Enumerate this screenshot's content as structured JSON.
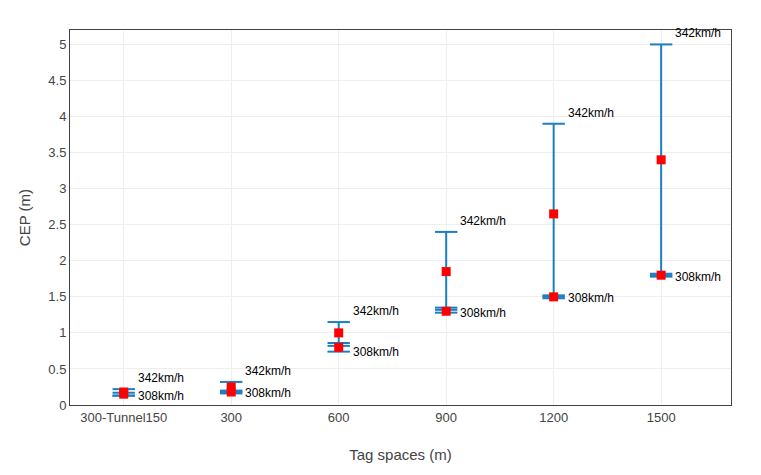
{
  "chart_data": {
    "type": "errorbar",
    "xlabel": "Tag spaces (m)",
    "ylabel": "CEP (m)",
    "categories": [
      "300-Tunnel150",
      "300",
      "600",
      "900",
      "1200",
      "1500"
    ],
    "color": "#1B7FC4",
    "series": [
      {
        "name": "342km/h",
        "color": "#FF0000",
        "marker": "square",
        "values": [
          0.18,
          0.25,
          1.0,
          1.85,
          2.65,
          3.4
        ],
        "upper": [
          0.22,
          0.32,
          1.15,
          2.4,
          3.9,
          5.0
        ],
        "lower": [
          0.13,
          0.18,
          0.82,
          1.35,
          1.5,
          1.8
        ]
      },
      {
        "name": "308km/h",
        "color": "#FF0000",
        "marker": "square",
        "values": [
          0.15,
          0.18,
          0.8,
          1.3,
          1.5,
          1.8
        ],
        "upper": [
          0.17,
          0.2,
          0.86,
          1.32,
          1.52,
          1.82
        ],
        "lower": [
          0.13,
          0.16,
          0.74,
          1.28,
          1.48,
          1.78
        ]
      }
    ],
    "ylim": [
      0,
      5.2
    ],
    "yticks": [
      0,
      0.5,
      1.0,
      1.5,
      2.0,
      2.5,
      3.0,
      3.5,
      4.0,
      4.5,
      5.0
    ],
    "grid": true
  }
}
